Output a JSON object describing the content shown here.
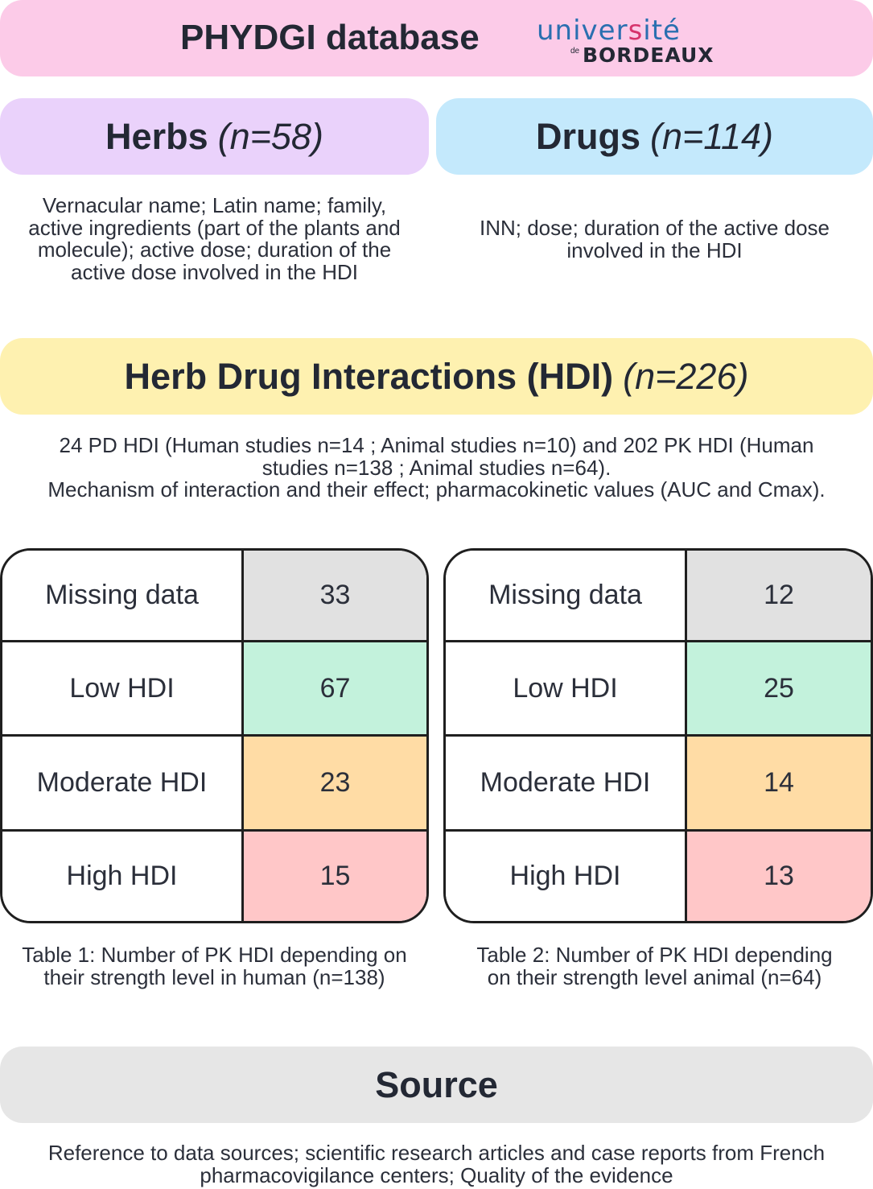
{
  "header": {
    "title": "PHYDGI database"
  },
  "logo": {
    "line1_a": "univer",
    "line1_b": "s",
    "line1_c": "ité",
    "de": "de",
    "line2": "BORDEAUX"
  },
  "herbs": {
    "label": "Herbs",
    "count": "(n=58)",
    "description": "Vernacular name; Latin name; family,\nactive ingredients (part of the plants and\nmolecule); active dose; duration of the\nactive dose involved in the HDI"
  },
  "drugs": {
    "label": "Drugs",
    "count": "(n=114)",
    "description": "INN; dose; duration of the active dose\ninvolved in the HDI"
  },
  "hdi": {
    "label": "Herb Drug Interactions (HDI)",
    "count": "(n=226)",
    "description": "24 PD HDI (Human studies n=14 ; Animal studies n=10) and 202 PK HDI (Human\nstudies n=138 ; Animal studies n=64).\nMechanism of interaction and their effect; pharmacokinetic values (AUC and Cmax)."
  },
  "table1": {
    "rows": [
      {
        "label": "Missing data",
        "value": "33"
      },
      {
        "label": "Low HDI",
        "value": "67"
      },
      {
        "label": "Moderate HDI",
        "value": "23"
      },
      {
        "label": "High HDI",
        "value": "15"
      }
    ],
    "caption": "Table 1: Number of PK HDI depending on\ntheir strength level in human (n=138)"
  },
  "table2": {
    "rows": [
      {
        "label": "Missing data",
        "value": "12"
      },
      {
        "label": "Low HDI",
        "value": "25"
      },
      {
        "label": "Moderate HDI",
        "value": "14"
      },
      {
        "label": "High HDI",
        "value": "13"
      }
    ],
    "caption": "Table 2: Number of PK HDI depending\non their strength level animal (n=64)"
  },
  "source": {
    "label": "Source",
    "description": "Reference to data sources; scientific research articles and case reports from French\npharmacovigilance centers; Quality of the evidence"
  },
  "colors": {
    "header": "#fccbe8",
    "herbs": "#ead2fb",
    "drugs": "#c4e9fc",
    "hdi": "#fef1b0",
    "source": "#e6e6e6",
    "missing": "#e1e1e1",
    "low": "#c3f2dc",
    "moderate": "#ffdca5",
    "high": "#ffc7c8"
  }
}
